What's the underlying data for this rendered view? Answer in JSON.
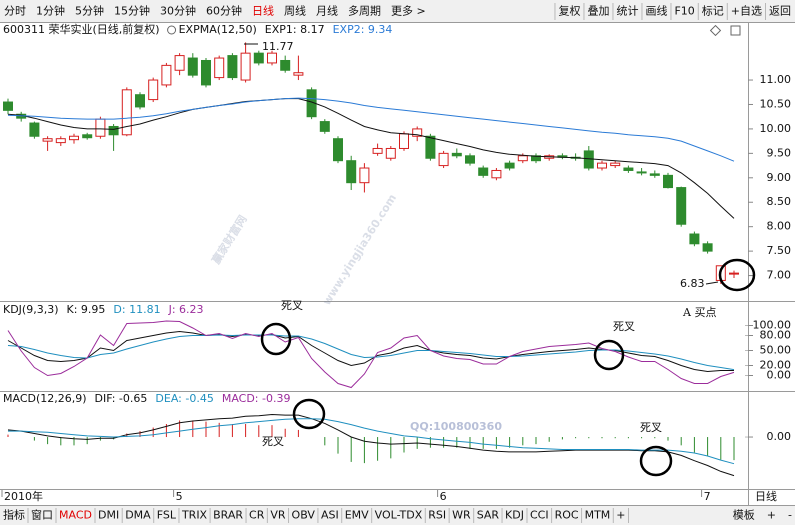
{
  "toolbar": {
    "left": [
      "分时",
      "1分钟",
      "5分钟",
      "15分钟",
      "30分钟",
      "60分钟",
      "日线",
      "周线",
      "月线",
      "多周期",
      "更多 >"
    ],
    "active": 6,
    "right": [
      "复权",
      "叠加",
      "统计",
      "画线",
      "F10",
      "标记",
      "+自选",
      "返回"
    ]
  },
  "chart_data": [
    {
      "type": "candlestick",
      "title": "600311 荣华实业(日线,前复权)",
      "indicator": "EXPMA(12,50)",
      "categories": [
        "2010年",
        null,
        null,
        null,
        null,
        null,
        null,
        null,
        null,
        null,
        null,
        null,
        null,
        "5",
        null,
        null,
        null,
        null,
        null,
        null,
        null,
        null,
        null,
        null,
        null,
        null,
        null,
        null,
        null,
        null,
        null,
        null,
        null,
        "6",
        null,
        null,
        null,
        null,
        null,
        null,
        null,
        null,
        null,
        null,
        null,
        null,
        null,
        null,
        null,
        null,
        null,
        null,
        null,
        "7",
        null,
        null
      ],
      "open": [
        10.55,
        10.3,
        10.12,
        9.75,
        9.72,
        9.78,
        9.88,
        9.85,
        10.05,
        9.88,
        10.7,
        10.6,
        10.9,
        11.2,
        11.45,
        11.4,
        11.05,
        11.5,
        11.0,
        11.55,
        11.35,
        11.4,
        11.1,
        10.8,
        10.15,
        9.8,
        9.35,
        8.9,
        9.5,
        9.4,
        9.6,
        9.85,
        9.85,
        9.25,
        9.5,
        9.45,
        9.2,
        9.0,
        9.3,
        9.35,
        9.45,
        9.4,
        9.45,
        9.42,
        9.55,
        9.2,
        9.25,
        9.2,
        9.12,
        9.08,
        9.05,
        8.8,
        7.85,
        7.65,
        6.9,
        7.05
      ],
      "high": [
        10.62,
        10.35,
        10.15,
        9.85,
        9.85,
        9.9,
        9.92,
        10.25,
        10.1,
        10.85,
        10.75,
        11.05,
        11.35,
        11.55,
        11.55,
        11.45,
        11.5,
        11.55,
        11.77,
        11.6,
        11.6,
        11.5,
        11.5,
        10.85,
        10.2,
        9.85,
        9.45,
        9.3,
        9.7,
        9.65,
        9.95,
        10.05,
        9.9,
        9.55,
        9.6,
        9.5,
        9.25,
        9.2,
        9.35,
        9.5,
        9.5,
        9.48,
        9.5,
        9.5,
        9.65,
        9.35,
        9.35,
        9.25,
        9.2,
        9.15,
        9.1,
        8.82,
        7.9,
        7.7,
        7.2,
        7.1
      ],
      "low": [
        10.3,
        10.15,
        9.8,
        9.55,
        9.65,
        9.7,
        9.78,
        9.8,
        9.55,
        9.85,
        10.4,
        10.55,
        10.85,
        11.1,
        11.05,
        10.85,
        11.0,
        11.0,
        10.95,
        11.3,
        11.3,
        11.15,
        11.0,
        10.2,
        9.9,
        9.3,
        8.75,
        8.7,
        9.45,
        9.35,
        9.55,
        9.75,
        9.35,
        9.2,
        9.4,
        9.25,
        9.0,
        8.95,
        9.15,
        9.3,
        9.3,
        9.35,
        9.38,
        9.35,
        9.15,
        9.15,
        9.2,
        9.1,
        9.05,
        9.0,
        8.78,
        8.0,
        7.6,
        7.45,
        6.83,
        6.95
      ],
      "close": [
        10.38,
        10.22,
        9.85,
        9.8,
        9.8,
        9.85,
        9.82,
        10.2,
        9.88,
        10.8,
        10.45,
        11.0,
        11.3,
        11.5,
        11.1,
        10.9,
        11.45,
        11.05,
        11.55,
        11.35,
        11.55,
        11.2,
        11.15,
        10.25,
        9.95,
        9.35,
        8.9,
        9.2,
        9.6,
        9.6,
        9.9,
        10.0,
        9.4,
        9.5,
        9.45,
        9.3,
        9.05,
        9.15,
        9.2,
        9.45,
        9.35,
        9.45,
        9.42,
        9.4,
        9.2,
        9.3,
        9.3,
        9.15,
        9.1,
        9.05,
        8.8,
        8.05,
        7.65,
        7.5,
        7.2,
        7.05
      ],
      "up_color": "#d62020",
      "down_color": "#2e8b2e",
      "series": [
        {
          "name": "EXP1",
          "label": "EXP1: 8.17",
          "color": "#111111",
          "values": [
            10.3,
            10.28,
            10.22,
            10.15,
            10.08,
            10.03,
            10.0,
            10.0,
            9.99,
            10.05,
            10.1,
            10.18,
            10.25,
            10.33,
            10.4,
            10.44,
            10.48,
            10.52,
            10.56,
            10.58,
            10.6,
            10.62,
            10.62,
            10.55,
            10.45,
            10.32,
            10.18,
            10.05,
            9.98,
            9.92,
            9.9,
            9.88,
            9.82,
            9.76,
            9.7,
            9.64,
            9.57,
            9.52,
            9.48,
            9.46,
            9.44,
            9.43,
            9.42,
            9.41,
            9.39,
            9.37,
            9.35,
            9.33,
            9.31,
            9.29,
            9.25,
            9.1,
            8.9,
            8.68,
            8.42,
            8.17
          ]
        },
        {
          "name": "EXP2",
          "label": "EXP2: 9.34",
          "color": "#2b7bd6",
          "values": [
            10.28,
            10.27,
            10.26,
            10.24,
            10.22,
            10.21,
            10.2,
            10.2,
            10.2,
            10.22,
            10.24,
            10.27,
            10.31,
            10.36,
            10.4,
            10.44,
            10.48,
            10.51,
            10.55,
            10.58,
            10.6,
            10.62,
            10.63,
            10.62,
            10.6,
            10.57,
            10.53,
            10.48,
            10.44,
            10.41,
            10.38,
            10.35,
            10.32,
            10.29,
            10.26,
            10.23,
            10.2,
            10.17,
            10.14,
            10.11,
            10.08,
            10.05,
            10.02,
            9.99,
            9.96,
            9.93,
            9.91,
            9.88,
            9.86,
            9.84,
            9.81,
            9.75,
            9.65,
            9.55,
            9.45,
            9.34
          ]
        }
      ],
      "ylim": [
        6.5,
        11.86
      ],
      "yticks": [
        {
          "value": 7,
          "label": "7.00"
        },
        {
          "value": 7.5,
          "label": "7.50"
        },
        {
          "value": 8,
          "label": "8.00"
        },
        {
          "value": 8.5,
          "label": "8.50"
        },
        {
          "value": 9,
          "label": "9.00"
        },
        {
          "value": 9.5,
          "label": "9.50"
        },
        {
          "value": 10,
          "label": "10.00"
        },
        {
          "value": 10.5,
          "label": "10.50"
        },
        {
          "value": 11,
          "label": "11.00"
        }
      ],
      "annotations": [
        {
          "text": "11.77"
        },
        {
          "text": "6.83"
        },
        {
          "text": "A  买点"
        }
      ]
    },
    {
      "type": "line",
      "title": "KDJ(9,3,3)",
      "series": [
        {
          "name": "K",
          "label": "K: 9.95",
          "color": "#111111",
          "values": [
            70,
            55,
            40,
            30,
            28,
            30,
            35,
            55,
            50,
            70,
            75,
            80,
            85,
            88,
            85,
            80,
            82,
            78,
            82,
            80,
            82,
            75,
            78,
            60,
            45,
            30,
            20,
            25,
            40,
            45,
            55,
            60,
            50,
            45,
            42,
            40,
            35,
            33,
            38,
            42,
            45,
            48,
            50,
            52,
            55,
            52,
            50,
            45,
            40,
            38,
            30,
            20,
            12,
            8,
            10,
            9.95
          ]
        },
        {
          "name": "D",
          "label": "D: 11.81",
          "color": "#1f8fbf",
          "values": [
            60,
            58,
            52,
            45,
            40,
            36,
            35,
            42,
            45,
            53,
            60,
            67,
            73,
            78,
            80,
            80,
            81,
            80,
            81,
            81,
            81,
            79,
            79,
            73,
            64,
            53,
            42,
            36,
            37,
            40,
            45,
            50,
            50,
            48,
            46,
            44,
            41,
            38,
            38,
            39,
            41,
            43,
            45,
            47,
            50,
            51,
            51,
            49,
            46,
            43,
            39,
            33,
            26,
            20,
            16,
            11.81
          ]
        },
        {
          "name": "J",
          "label": "J: 6.23",
          "color": "#9b2c9b",
          "values": [
            90,
            49,
            16,
            0,
            4,
            18,
            35,
            81,
            60,
            104,
            105,
            106,
            109,
            108,
            95,
            80,
            84,
            74,
            84,
            78,
            84,
            67,
            76,
            34,
            7,
            -16,
            -24,
            3,
            46,
            55,
            75,
            80,
            50,
            39,
            34,
            32,
            23,
            23,
            38,
            48,
            53,
            58,
            60,
            62,
            65,
            54,
            48,
            37,
            28,
            28,
            12,
            -6,
            -16,
            -16,
            -2,
            6.23
          ]
        }
      ],
      "ylim": [
        -25,
        115
      ],
      "yticks": [
        {
          "value": 0,
          "label": "0.00"
        },
        {
          "value": 20,
          "label": "20.00"
        },
        {
          "value": 50,
          "label": "50.00"
        },
        {
          "value": 80,
          "label": "80.00"
        },
        {
          "value": 100,
          "label": "100.00"
        }
      ],
      "annotations": [
        {
          "text": "死叉"
        },
        {
          "text": "死叉"
        }
      ]
    },
    {
      "type": "macd",
      "title": "MACD(12,26,9)",
      "series": [
        {
          "name": "DIF",
          "label": "DIF: -0.65",
          "color": "#111111",
          "values": [
            0.12,
            0.1,
            0.06,
            0.02,
            -0.01,
            -0.03,
            -0.04,
            -0.02,
            -0.02,
            0.04,
            0.07,
            0.12,
            0.18,
            0.24,
            0.27,
            0.29,
            0.31,
            0.32,
            0.35,
            0.36,
            0.38,
            0.37,
            0.37,
            0.31,
            0.23,
            0.12,
            0.0,
            -0.07,
            -0.1,
            -0.12,
            -0.11,
            -0.1,
            -0.12,
            -0.14,
            -0.16,
            -0.19,
            -0.22,
            -0.24,
            -0.25,
            -0.25,
            -0.25,
            -0.24,
            -0.23,
            -0.22,
            -0.22,
            -0.22,
            -0.22,
            -0.22,
            -0.23,
            -0.23,
            -0.25,
            -0.31,
            -0.4,
            -0.48,
            -0.58,
            -0.65
          ]
        },
        {
          "name": "DEA",
          "label": "DEA: -0.45",
          "color": "#1f8fbf",
          "values": [
            0.1,
            0.1,
            0.09,
            0.08,
            0.06,
            0.04,
            0.02,
            0.01,
            0.0,
            0.01,
            0.02,
            0.04,
            0.07,
            0.1,
            0.13,
            0.16,
            0.19,
            0.21,
            0.24,
            0.26,
            0.28,
            0.3,
            0.31,
            0.31,
            0.3,
            0.26,
            0.21,
            0.15,
            0.1,
            0.06,
            0.02,
            0.0,
            -0.03,
            -0.05,
            -0.07,
            -0.09,
            -0.12,
            -0.14,
            -0.16,
            -0.18,
            -0.19,
            -0.2,
            -0.21,
            -0.21,
            -0.21,
            -0.21,
            -0.21,
            -0.21,
            -0.22,
            -0.22,
            -0.22,
            -0.24,
            -0.27,
            -0.32,
            -0.39,
            -0.45
          ]
        },
        {
          "name": "MACD",
          "label": "MACD: -0.39",
          "color": "#9b2c9b",
          "kind": "bar",
          "values": [
            0.04,
            0,
            -0.06,
            -0.12,
            -0.14,
            -0.14,
            -0.12,
            -0.06,
            -0.04,
            0.06,
            0.1,
            0.16,
            0.22,
            0.28,
            0.28,
            0.26,
            0.24,
            0.22,
            0.22,
            0.2,
            0.2,
            0.14,
            0.12,
            0,
            -0.14,
            -0.28,
            -0.42,
            -0.44,
            -0.4,
            -0.36,
            -0.26,
            -0.2,
            -0.18,
            -0.18,
            -0.18,
            -0.2,
            -0.2,
            -0.2,
            -0.18,
            -0.14,
            -0.12,
            -0.08,
            -0.04,
            -0.02,
            -0.02,
            -0.02,
            -0.02,
            -0.02,
            -0.02,
            -0.02,
            -0.06,
            -0.14,
            -0.26,
            -0.32,
            -0.38,
            -0.39
          ]
        }
      ],
      "up_color": "#d62020",
      "down_color": "#2e8b2e",
      "ylim": [
        -0.86,
        0.49
      ],
      "yticks": [
        {
          "value": 0,
          "label": "0.00"
        }
      ],
      "annotations": [
        {
          "text": "死叉"
        },
        {
          "text": "死叉"
        },
        {
          "text": "QQ:100800360"
        }
      ]
    }
  ],
  "period_label": "日线",
  "tabs": {
    "items": [
      "指标",
      "窗口",
      "MACD",
      "DMI",
      "DMA",
      "FSL",
      "TRIX",
      "BRAR",
      "CR",
      "VR",
      "OBV",
      "ASI",
      "EMV",
      "VOL-TDX",
      "RSI",
      "WR",
      "SAR",
      "KDJ",
      "CCI",
      "ROC",
      "MTM",
      "+"
    ],
    "active": 2,
    "right": [
      "模板",
      "+",
      "-"
    ]
  },
  "watermark": [
    "赢家财富网",
    "www.yingjia360.com"
  ]
}
